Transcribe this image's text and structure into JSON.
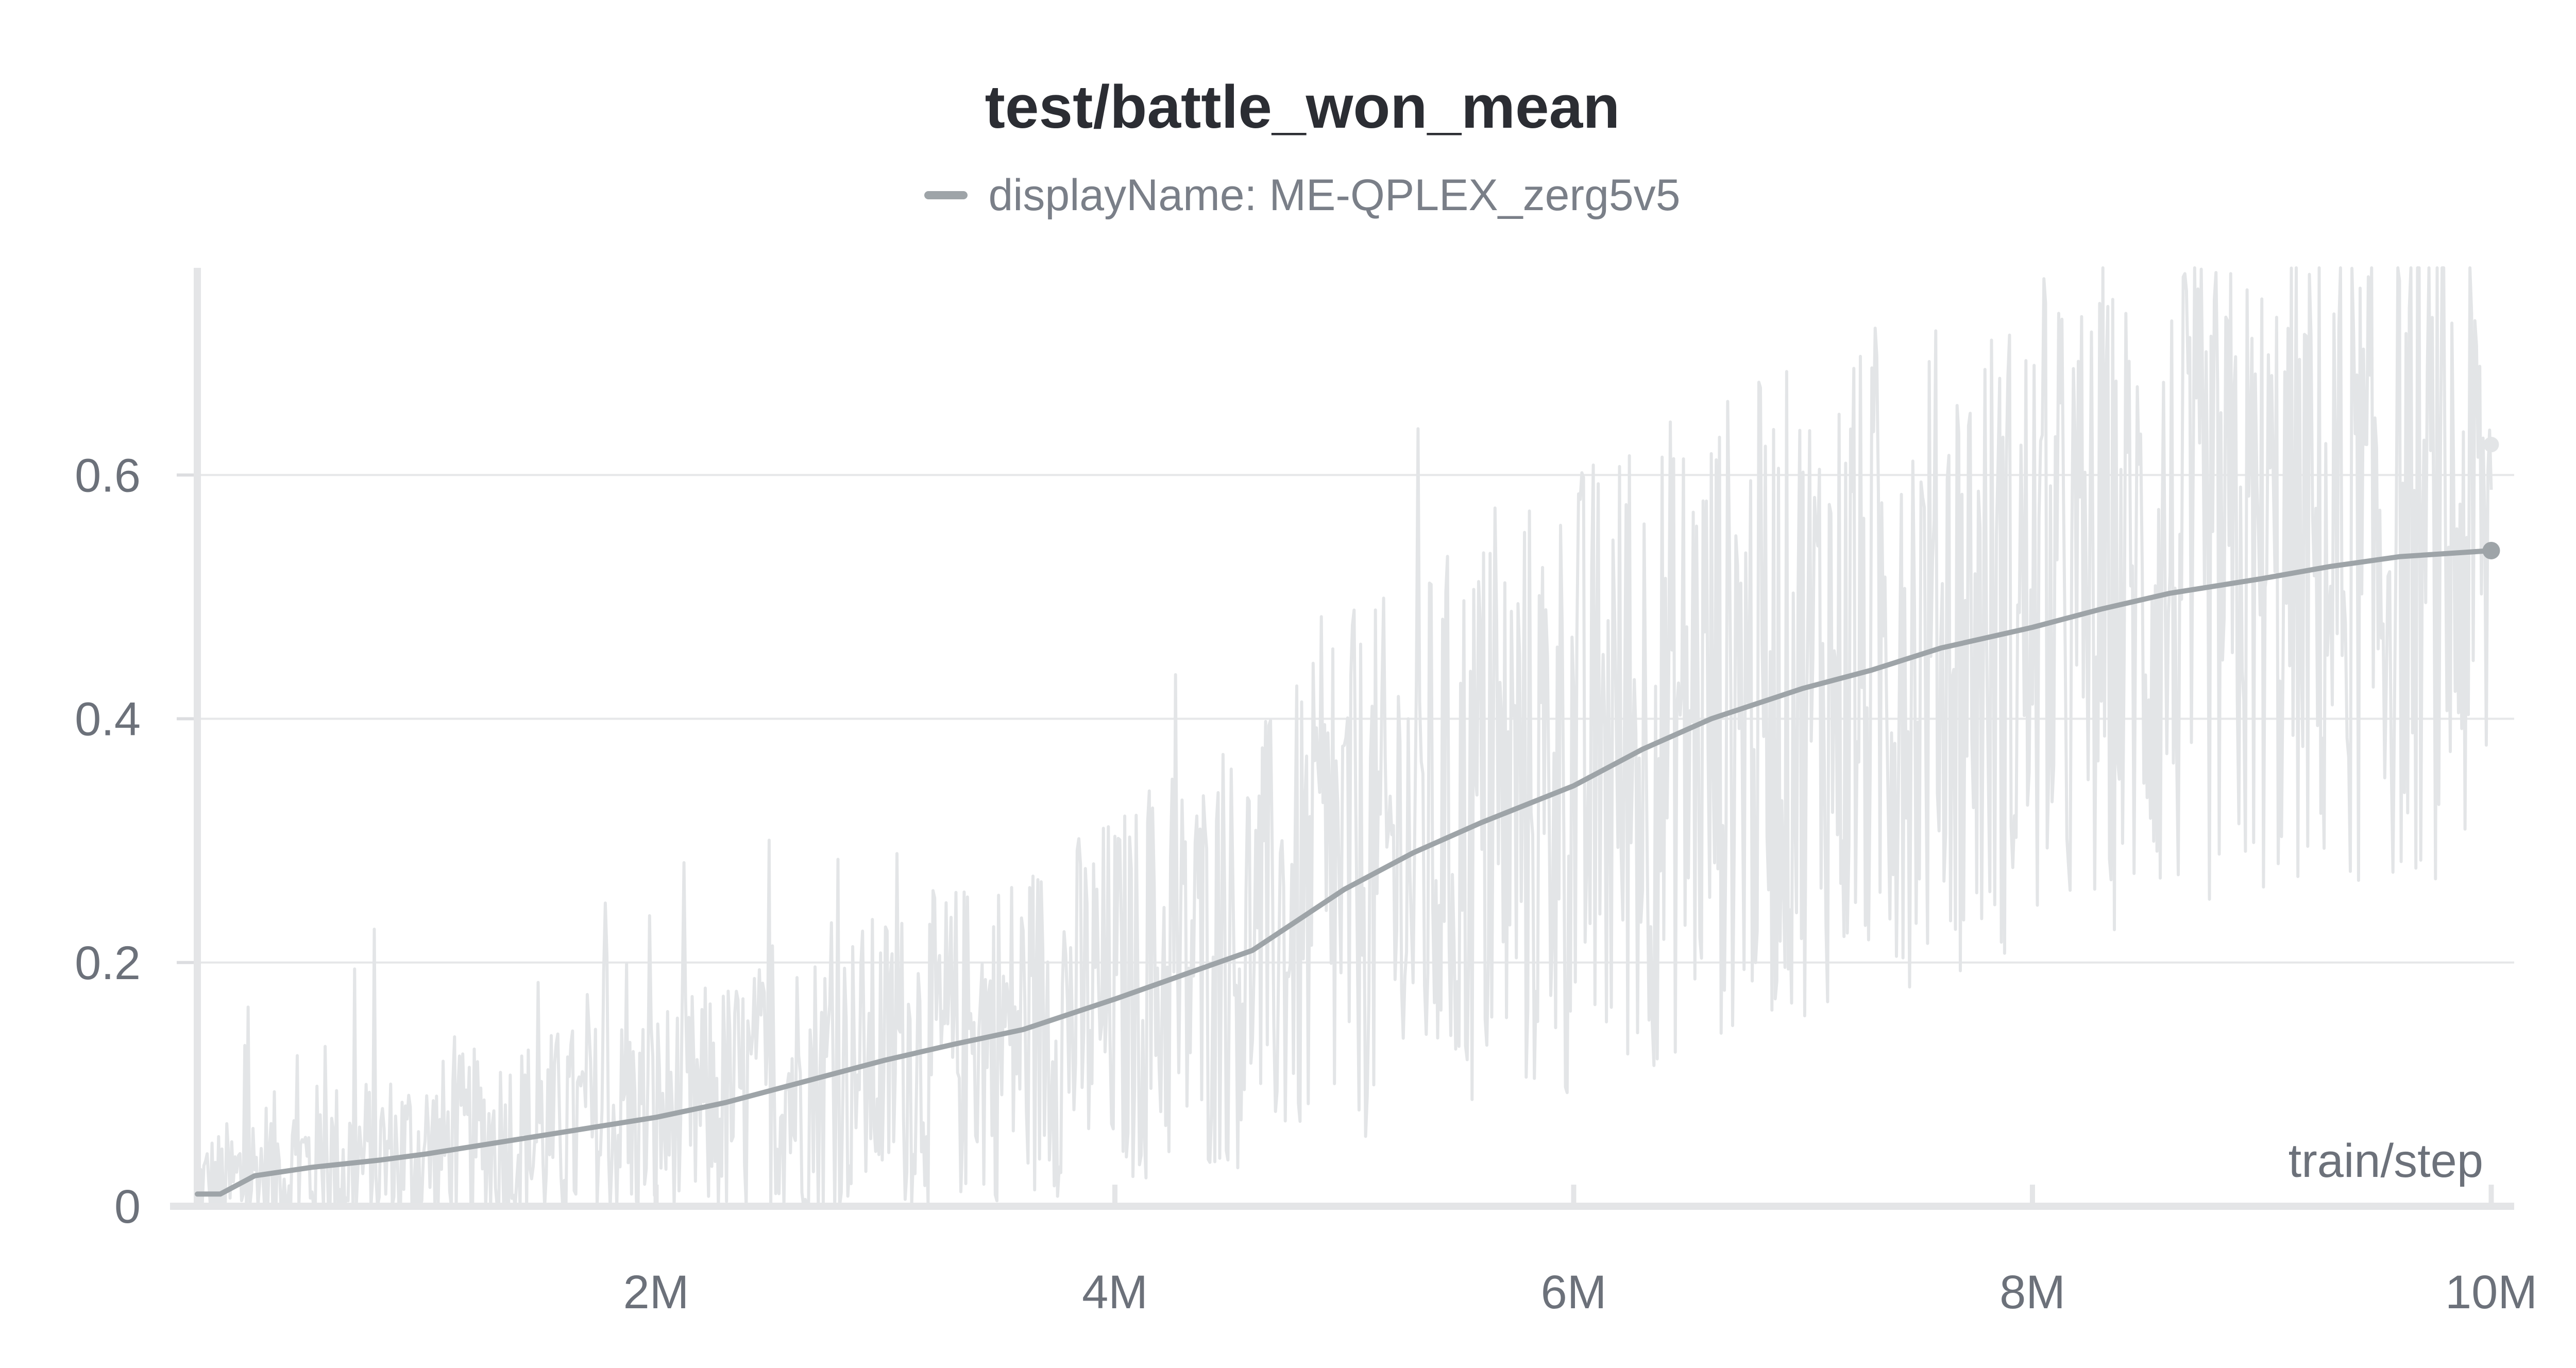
{
  "chart_data": {
    "type": "line",
    "title": "test/battle_won_mean",
    "xlabel": "train/step",
    "ylabel": "",
    "xlim": [
      0,
      10100000
    ],
    "ylim": [
      0,
      0.77
    ],
    "x_ticks": [
      {
        "value": 2000000,
        "label": "2M"
      },
      {
        "value": 4000000,
        "label": "4M"
      },
      {
        "value": 6000000,
        "label": "6M"
      },
      {
        "value": 8000000,
        "label": "8M"
      },
      {
        "value": 10000000,
        "label": "10M"
      }
    ],
    "y_ticks": [
      {
        "value": 0,
        "label": "0"
      },
      {
        "value": 0.2,
        "label": "0.2"
      },
      {
        "value": 0.4,
        "label": "0.4"
      },
      {
        "value": 0.6,
        "label": "0.6"
      }
    ],
    "grid": true,
    "legend": {
      "position": "top-center",
      "label": "displayName: ME-QPLEX_zerg5v5"
    },
    "series": [
      {
        "name": "displayName: ME-QPLEX_zerg5v5",
        "color": "#9ea4a8",
        "raw_color": "#e3e5e7",
        "smoothed": {
          "x": [
            0,
            100000,
            250000,
            500000,
            800000,
            1000000,
            1500000,
            2000000,
            2300000,
            2600000,
            3000000,
            3300000,
            3600000,
            4000000,
            4300000,
            4600000,
            4800000,
            5000000,
            5300000,
            5600000,
            6000000,
            6300000,
            6600000,
            7000000,
            7300000,
            7600000,
            8000000,
            8300000,
            8600000,
            9000000,
            9300000,
            9600000,
            10000000
          ],
          "y": [
            0.01,
            0.01,
            0.025,
            0.032,
            0.038,
            0.043,
            0.058,
            0.073,
            0.085,
            0.1,
            0.12,
            0.133,
            0.145,
            0.17,
            0.19,
            0.21,
            0.235,
            0.26,
            0.29,
            0.315,
            0.345,
            0.375,
            0.4,
            0.425,
            0.44,
            0.458,
            0.475,
            0.49,
            0.503,
            0.515,
            0.525,
            0.533,
            0.538
          ]
        },
        "raw_last": 0.625
      }
    ]
  }
}
